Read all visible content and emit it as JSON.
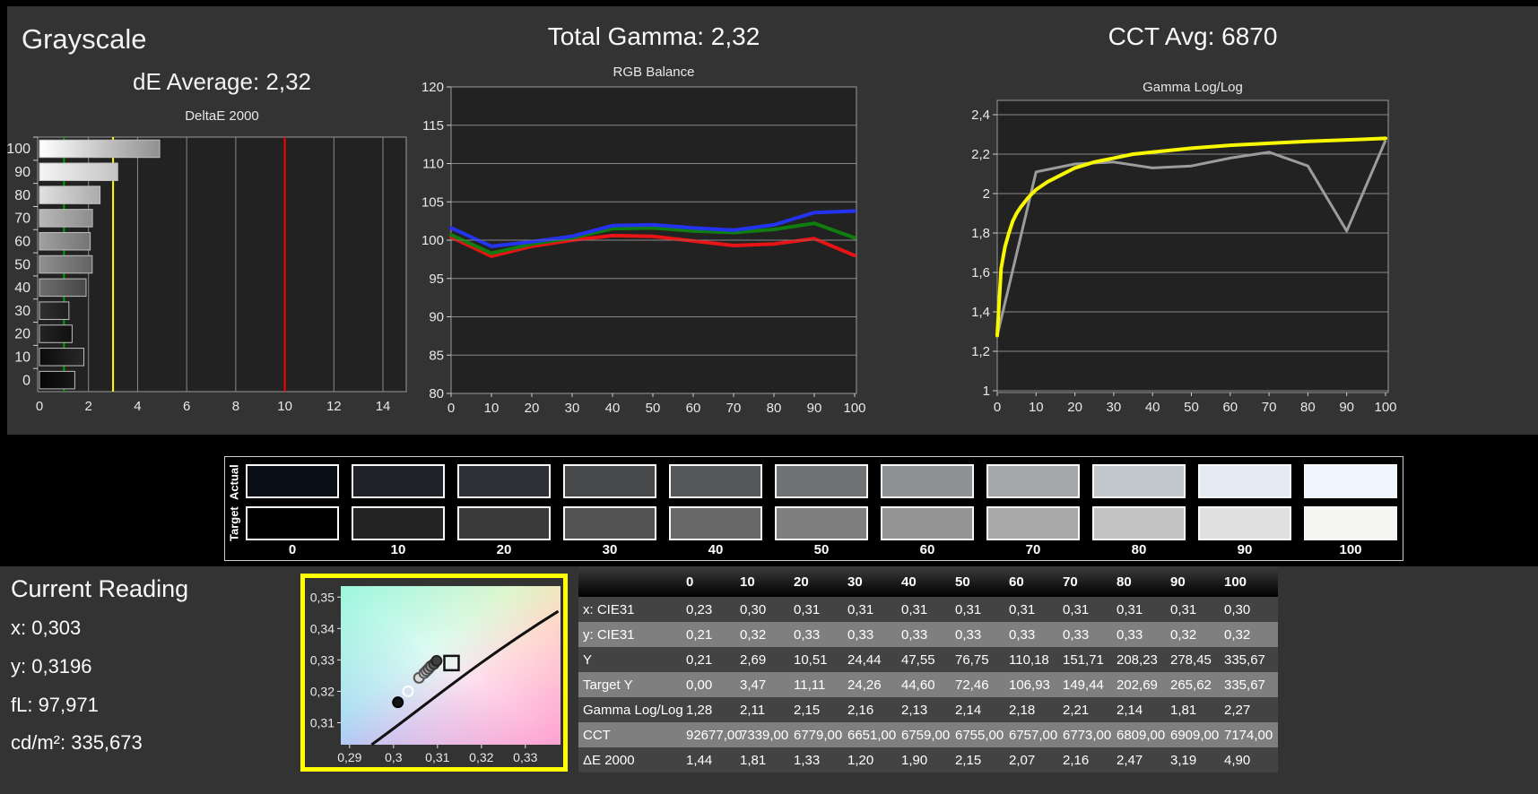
{
  "chart_data": [
    {
      "id": "deltae",
      "type": "bar",
      "orientation": "horizontal",
      "panel_title": "Grayscale",
      "panel_subtitle": "dE Average: 2,32",
      "title": "DeltaE 2000",
      "categories": [
        100,
        90,
        80,
        70,
        60,
        50,
        40,
        30,
        20,
        10,
        0
      ],
      "values": [
        4.9,
        3.19,
        2.47,
        2.16,
        2.07,
        2.15,
        1.9,
        1.2,
        1.33,
        1.81,
        1.44
      ],
      "xlim": [
        0,
        14
      ],
      "xticks": [
        0,
        2,
        4,
        6,
        8,
        10,
        12,
        14
      ],
      "grid": "vertical",
      "reference_lines": [
        {
          "x": 1,
          "color": "#00a000",
          "meaning": "good"
        },
        {
          "x": 3,
          "color": "#ffff00",
          "meaning": "warning"
        },
        {
          "x": 10,
          "color": "#ff0000",
          "meaning": "bad"
        }
      ],
      "bar_gradients": [
        [
          "#ffffff",
          "#909090"
        ],
        [
          "#f4f4f4",
          "#c4c4c4"
        ],
        [
          "#e0e0e0",
          "#ababab"
        ],
        [
          "#b8b8b8",
          "#8d8d8d"
        ],
        [
          "#a0a0a0",
          "#747474"
        ],
        [
          "#8f8f8f",
          "#636363"
        ],
        [
          "#6e6e6e",
          "#474747"
        ],
        [
          "#303030",
          "#1c1c1c"
        ],
        [
          "#232323",
          "#101010"
        ],
        [
          "#0b0b0b",
          "#282828"
        ],
        [
          "#050505",
          "#181818"
        ]
      ]
    },
    {
      "id": "rgb_balance",
      "type": "line",
      "panel_title": "Total Gamma: 2,32",
      "title": "RGB Balance",
      "x": [
        0,
        10,
        20,
        30,
        40,
        50,
        60,
        70,
        80,
        90,
        100
      ],
      "ylim": [
        80,
        120
      ],
      "yticks": [
        80,
        85,
        90,
        95,
        100,
        105,
        110,
        115,
        120
      ],
      "grid": "horizontal",
      "series": [
        {
          "name": "Red",
          "color": "#e61414",
          "values": [
            100.4,
            97.9,
            99.2,
            100.0,
            100.6,
            100.5,
            99.9,
            99.3,
            99.5,
            100.2,
            98.0
          ]
        },
        {
          "name": "Green",
          "color": "#0f7d0f",
          "values": [
            100.7,
            98.3,
            99.5,
            100.3,
            101.5,
            101.6,
            101.2,
            101.0,
            101.4,
            102.2,
            100.3
          ]
        },
        {
          "name": "Blue",
          "color": "#2433f0",
          "values": [
            101.6,
            99.2,
            99.8,
            100.5,
            101.9,
            102.0,
            101.6,
            101.3,
            102.0,
            103.6,
            103.8
          ]
        }
      ]
    },
    {
      "id": "gamma_loglog",
      "type": "line",
      "panel_title": "CCT Avg: 6870",
      "title": "Gamma Log/Log",
      "x": [
        0,
        10,
        20,
        30,
        40,
        50,
        60,
        70,
        80,
        90,
        100
      ],
      "ylim": [
        1.0,
        2.48
      ],
      "yticks": [
        1.0,
        1.2,
        1.4,
        1.6,
        1.8,
        2.0,
        2.2,
        2.4
      ],
      "ytick_labels": [
        "1",
        "1,2",
        "1,4",
        "1,6",
        "1,8",
        "2",
        "2,2",
        "2,4"
      ],
      "grid": "horizontal",
      "series": [
        {
          "name": "Measured",
          "color": "#9c9c9c",
          "values": [
            1.28,
            2.11,
            2.15,
            2.16,
            2.13,
            2.14,
            2.18,
            2.21,
            2.14,
            1.81,
            2.27
          ]
        },
        {
          "name": "Target",
          "color": "#f8f800",
          "points": [
            [
              0,
              1.28
            ],
            [
              1,
              1.62
            ],
            [
              2,
              1.73
            ],
            [
              3,
              1.8
            ],
            [
              4,
              1.86
            ],
            [
              5,
              1.9
            ],
            [
              6,
              1.93
            ],
            [
              8,
              1.98
            ],
            [
              10,
              2.02
            ],
            [
              13,
              2.06
            ],
            [
              16,
              2.09
            ],
            [
              20,
              2.13
            ],
            [
              25,
              2.16
            ],
            [
              30,
              2.18
            ],
            [
              35,
              2.2
            ],
            [
              40,
              2.21
            ],
            [
              50,
              2.23
            ],
            [
              60,
              2.245
            ],
            [
              70,
              2.255
            ],
            [
              80,
              2.265
            ],
            [
              90,
              2.272
            ],
            [
              100,
              2.28
            ]
          ]
        }
      ]
    },
    {
      "id": "cie_detail",
      "type": "scatter",
      "xlim": [
        0.288,
        0.338
      ],
      "ylim": [
        0.303,
        0.3535
      ],
      "xticks": [
        0.29,
        0.3,
        0.31,
        0.32,
        0.33
      ],
      "xtick_labels": [
        "0,29",
        "0,3",
        "0,31",
        "0,32",
        "0,33"
      ],
      "yticks": [
        0.31,
        0.32,
        0.33,
        0.34,
        0.35
      ],
      "ytick_labels": [
        "0,31",
        "0,32",
        "0,33",
        "0,34",
        "0,35"
      ],
      "locus": [
        [
          0.295,
          0.303
        ],
        [
          0.306,
          0.314
        ],
        [
          0.3185,
          0.329
        ],
        [
          0.3375,
          0.3455
        ]
      ],
      "points": [
        {
          "x": 0.301,
          "y": 0.3165,
          "fill": "#141414",
          "stroke": "#000000"
        },
        {
          "x": 0.3033,
          "y": 0.32,
          "fill": "none",
          "stroke": "#ffffff"
        },
        {
          "x": 0.3058,
          "y": 0.3243,
          "fill": "#d8d8d8",
          "stroke": "#555555"
        },
        {
          "x": 0.307,
          "y": 0.3258,
          "fill": "#cfcfcf",
          "stroke": "#555555"
        },
        {
          "x": 0.3075,
          "y": 0.3265,
          "fill": "#c2c2c2",
          "stroke": "#555555"
        },
        {
          "x": 0.308,
          "y": 0.3272,
          "fill": "#adadad",
          "stroke": "#444444"
        },
        {
          "x": 0.3085,
          "y": 0.328,
          "fill": "#8f8f8f",
          "stroke": "#444444"
        },
        {
          "x": 0.3092,
          "y": 0.3287,
          "fill": "#5a5a5a",
          "stroke": "#333333"
        },
        {
          "x": 0.3098,
          "y": 0.3297,
          "fill": "#3f3f3f",
          "stroke": "#222222"
        }
      ],
      "target_marker": {
        "x": 0.3132,
        "y": 0.329,
        "shape": "square",
        "color": "#111111"
      }
    }
  ],
  "swatches": {
    "row_labels": [
      "Actual",
      "Target"
    ],
    "levels": [
      "0",
      "10",
      "20",
      "30",
      "40",
      "50",
      "60",
      "70",
      "80",
      "90",
      "100"
    ],
    "actual_colors": [
      "#0a0e16",
      "#1f2227",
      "#2e3135",
      "#464849",
      "#56585a",
      "#6f7174",
      "#8e9295",
      "#a5a8ab",
      "#c1c7cb",
      "#e4ebf2",
      "#eff6ff"
    ],
    "target_colors": [
      "#000000",
      "#232323",
      "#3a3a3a",
      "#525252",
      "#686868",
      "#7f7f7f",
      "#949494",
      "#a9a9a9",
      "#c3c3c3",
      "#e0e0e0",
      "#f5f5f3"
    ]
  },
  "current_reading": {
    "title": "Current Reading",
    "lines": [
      "x: 0,303",
      "y: 0,3196",
      "fL: 97,971",
      "cd/m²: 335,673"
    ]
  },
  "table": {
    "col_headers": [
      "",
      "0",
      "10",
      "20",
      "30",
      "40",
      "50",
      "60",
      "70",
      "80",
      "90",
      "100"
    ],
    "rows": [
      {
        "label": "x: CIE31",
        "shade": "dark",
        "values": [
          "0,23",
          "0,30",
          "0,31",
          "0,31",
          "0,31",
          "0,31",
          "0,31",
          "0,31",
          "0,31",
          "0,31",
          "0,30"
        ]
      },
      {
        "label": "y: CIE31",
        "shade": "light",
        "values": [
          "0,21",
          "0,32",
          "0,33",
          "0,33",
          "0,33",
          "0,33",
          "0,33",
          "0,33",
          "0,33",
          "0,32",
          "0,32"
        ]
      },
      {
        "label": "Y",
        "shade": "dark",
        "values": [
          "0,21",
          "2,69",
          "10,51",
          "24,44",
          "47,55",
          "76,75",
          "110,18",
          "151,71",
          "208,23",
          "278,45",
          "335,67"
        ]
      },
      {
        "label": "Target Y",
        "shade": "light",
        "values": [
          "0,00",
          "3,47",
          "11,11",
          "24,26",
          "44,60",
          "72,46",
          "106,93",
          "149,44",
          "202,69",
          "265,62",
          "335,67"
        ]
      },
      {
        "label": "Gamma Log/Log",
        "shade": "dark",
        "values": [
          "1,28",
          "2,11",
          "2,15",
          "2,16",
          "2,13",
          "2,14",
          "2,18",
          "2,21",
          "2,14",
          "1,81",
          "2,27"
        ]
      },
      {
        "label": "CCT",
        "shade": "light",
        "values": [
          "92677,00",
          "7339,00",
          "6779,00",
          "6651,00",
          "6759,00",
          "6755,00",
          "6757,00",
          "6773,00",
          "6809,00",
          "6909,00",
          "7174,00"
        ]
      },
      {
        "label": "ΔE 2000",
        "shade": "dark",
        "values": [
          "1,44",
          "1,81",
          "1,33",
          "1,20",
          "1,90",
          "2,15",
          "2,07",
          "2,16",
          "2,47",
          "3,19",
          "4,90"
        ]
      }
    ]
  },
  "colors": {
    "page_bg": "#333333",
    "band_bg": "#000000",
    "plot_bg": "#222222",
    "plot_border": "#9a9a9a",
    "gridline": "#8a8a8a",
    "cie_frame": "#ffff00"
  }
}
